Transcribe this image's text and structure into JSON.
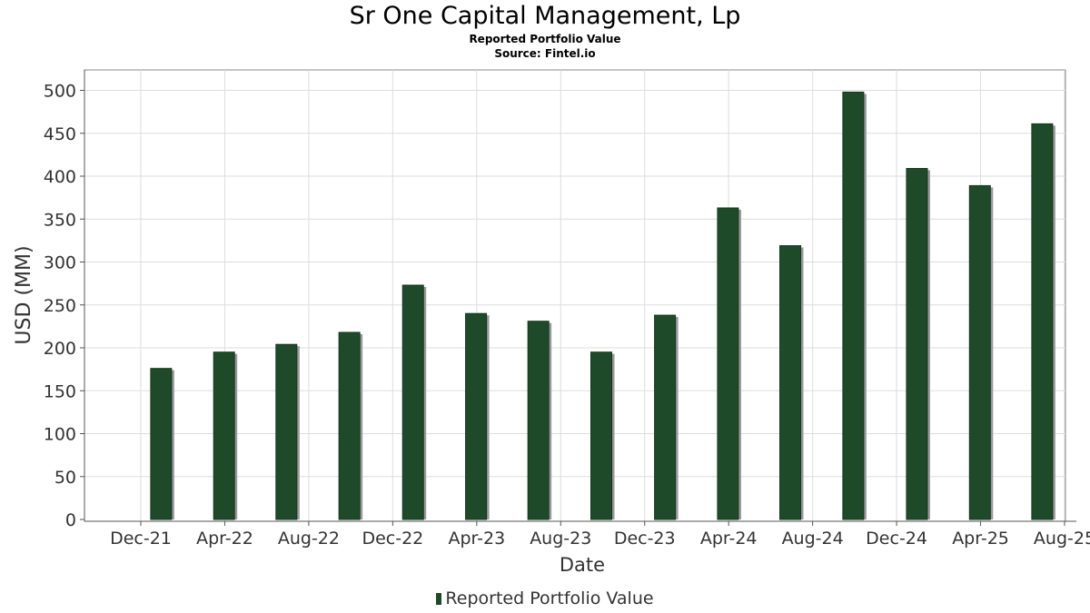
{
  "title": "Sr One Capital Management, Lp",
  "subtitle": "Reported Portfolio Value",
  "source": "Source: Fintel.io",
  "chart_data": {
    "type": "bar",
    "title": "Sr One Capital Management, Lp",
    "xlabel": "Date",
    "ylabel": "USD (MM)",
    "ylim": [
      0,
      520
    ],
    "yticks": [
      0,
      50,
      100,
      150,
      200,
      250,
      300,
      350,
      400,
      450,
      500
    ],
    "xticks": [
      "Dec-21",
      "Apr-22",
      "Aug-22",
      "Dec-22",
      "Apr-23",
      "Aug-23",
      "Dec-23",
      "Apr-24",
      "Aug-24",
      "Dec-24",
      "Apr-25",
      "Aug-25"
    ],
    "grid": true,
    "legend_position": "bottom",
    "bar_color": "#1f4a2a",
    "series": [
      {
        "name": "Reported Portfolio Value",
        "points": [
          {
            "date": "2021-12-31",
            "value": 176
          },
          {
            "date": "2022-03-31",
            "value": 195
          },
          {
            "date": "2022-06-30",
            "value": 204
          },
          {
            "date": "2022-09-30",
            "value": 218
          },
          {
            "date": "2022-12-31",
            "value": 273
          },
          {
            "date": "2023-03-31",
            "value": 240
          },
          {
            "date": "2023-06-30",
            "value": 231
          },
          {
            "date": "2023-09-30",
            "value": 195
          },
          {
            "date": "2023-12-31",
            "value": 238
          },
          {
            "date": "2024-03-31",
            "value": 363
          },
          {
            "date": "2024-06-30",
            "value": 319
          },
          {
            "date": "2024-09-30",
            "value": 498
          },
          {
            "date": "2024-12-31",
            "value": 409
          },
          {
            "date": "2025-03-31",
            "value": 389
          },
          {
            "date": "2025-06-30",
            "value": 461
          }
        ]
      }
    ]
  }
}
